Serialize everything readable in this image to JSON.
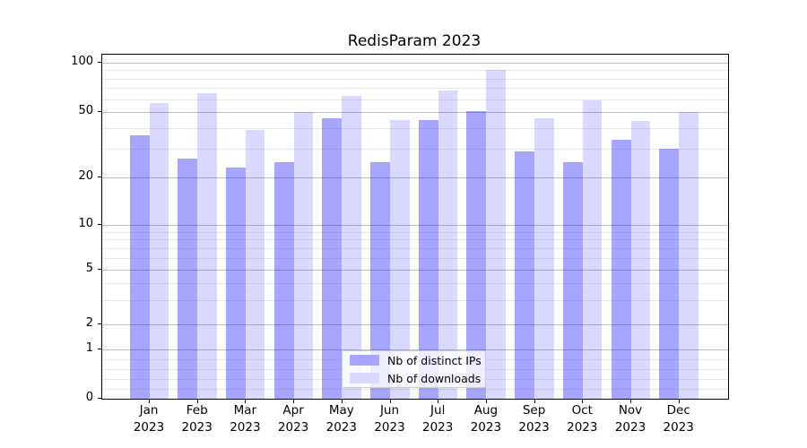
{
  "title": "RedisParam 2023",
  "chart_data": {
    "type": "bar",
    "title": "RedisParam 2023",
    "categories": [
      "Jan",
      "Feb",
      "Mar",
      "Apr",
      "May",
      "Jun",
      "Jul",
      "Aug",
      "Sep",
      "Oct",
      "Nov",
      "Dec"
    ],
    "category_year": "2023",
    "series": [
      {
        "name": "Nb of distinct IPs",
        "color": "#a6a6ff",
        "values": [
          36,
          26,
          23,
          25,
          46,
          25,
          45,
          51,
          29,
          25,
          34,
          30
        ]
      },
      {
        "name": "Nb of downloads",
        "color": "#d9d9ff",
        "values": [
          57,
          65,
          39,
          50,
          63,
          45,
          68,
          90,
          46,
          59,
          44,
          50
        ]
      }
    ],
    "xlabel": "",
    "ylabel": "",
    "yscale": "symlog",
    "ylim": [
      0,
      110
    ],
    "yticks": [
      0,
      1,
      2,
      5,
      10,
      20,
      50,
      100
    ],
    "yticks_minor": [
      0.2,
      0.4,
      0.6,
      0.8,
      3,
      4,
      6,
      7,
      8,
      9,
      30,
      40,
      60,
      70,
      80,
      90
    ],
    "grid": "on",
    "legend_position": "lower center",
    "bar_style": "grouped pairs, translucent blue"
  }
}
